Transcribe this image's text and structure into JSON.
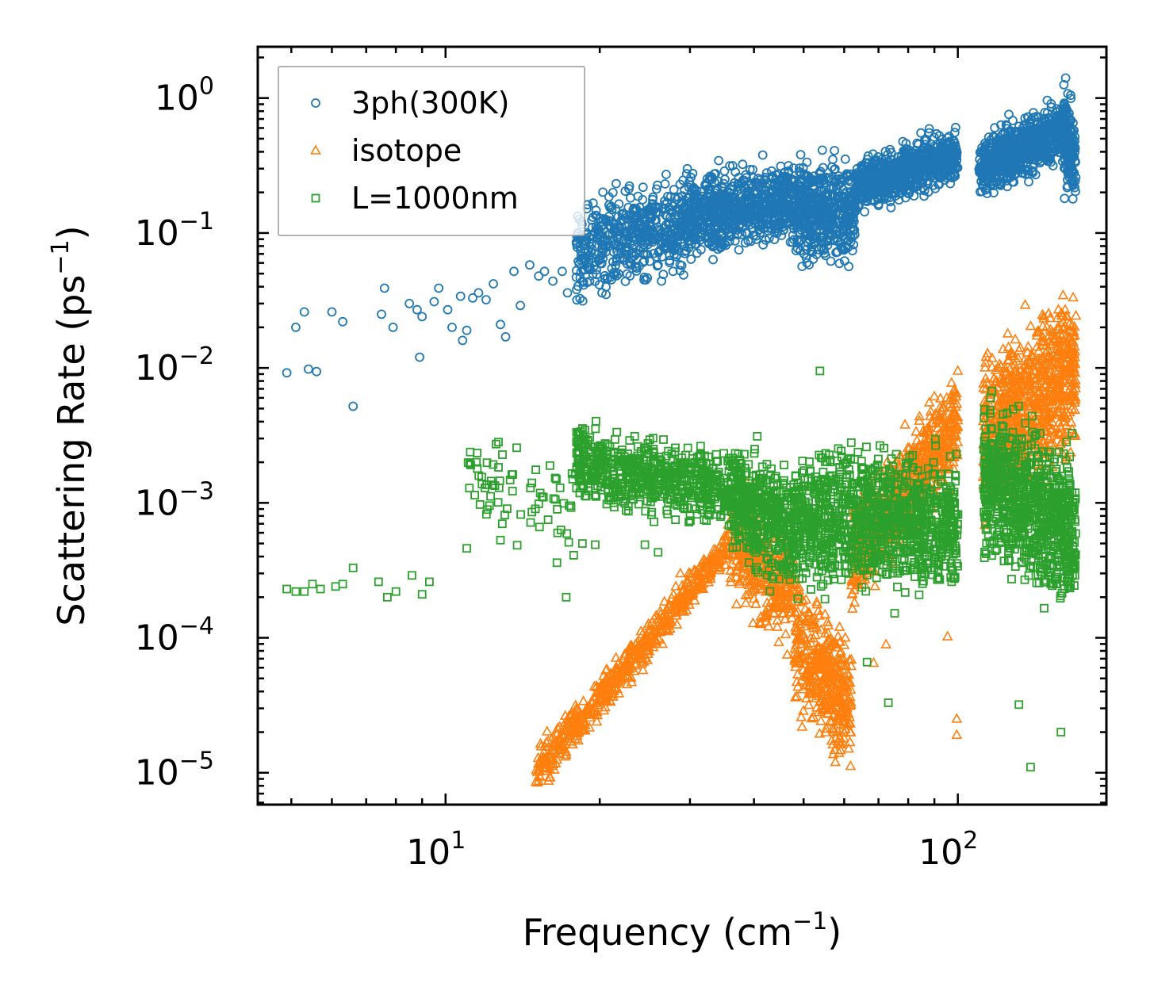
{
  "chart_data": {
    "type": "scatter",
    "xscale": "log",
    "yscale": "log",
    "xlabel": "Frequency (cm",
    "xlabel_sup": "−1",
    "xlabel_close": ")",
    "ylabel": "Scattering Rate (ps",
    "ylabel_sup": "−1",
    "ylabel_close": ")",
    "xlim": [
      4.3,
      195
    ],
    "ylim": [
      5.8e-06,
      2.4
    ],
    "legend_position": "upper-left",
    "x_ticks": [
      {
        "value": 10,
        "base": "10",
        "exp": "1"
      },
      {
        "value": 100,
        "base": "10",
        "exp": "2"
      }
    ],
    "y_ticks": [
      {
        "value": 1,
        "base": "10",
        "exp": "0"
      },
      {
        "value": 0.1,
        "base": "10",
        "exp": "−1"
      },
      {
        "value": 0.01,
        "base": "10",
        "exp": "−2"
      },
      {
        "value": 0.001,
        "base": "10",
        "exp": "−3"
      },
      {
        "value": 0.0001,
        "base": "10",
        "exp": "−4"
      },
      {
        "value": 1e-05,
        "base": "10",
        "exp": "−5"
      }
    ],
    "series": [
      {
        "name": "3ph(300K)",
        "marker": "circle",
        "color": "#1f77b4",
        "points": [
          [
            4.9,
            0.0092
          ],
          [
            5.1,
            0.02
          ],
          [
            5.3,
            0.026
          ],
          [
            5.4,
            0.0098
          ],
          [
            5.6,
            0.0094
          ],
          [
            6.0,
            0.026
          ],
          [
            6.3,
            0.022
          ],
          [
            6.6,
            0.0052
          ],
          [
            7.5,
            0.025
          ],
          [
            7.6,
            0.039
          ],
          [
            7.9,
            0.02
          ],
          [
            8.5,
            0.03
          ],
          [
            8.8,
            0.027
          ],
          [
            8.9,
            0.012
          ],
          [
            9.0,
            0.024
          ],
          [
            9.5,
            0.031
          ],
          [
            9.7,
            0.039
          ],
          [
            10.1,
            0.027
          ],
          [
            10.3,
            0.02
          ],
          [
            10.7,
            0.034
          ],
          [
            10.8,
            0.016
          ],
          [
            11.0,
            0.019
          ],
          [
            11.3,
            0.033
          ],
          [
            11.6,
            0.036
          ],
          [
            12.0,
            0.032
          ],
          [
            12.4,
            0.042
          ],
          [
            12.8,
            0.021
          ],
          [
            13.1,
            0.017
          ],
          [
            13.6,
            0.052
          ],
          [
            14.0,
            0.029
          ],
          [
            14.6,
            0.058
          ],
          [
            15.2,
            0.048
          ],
          [
            15.6,
            0.052
          ],
          [
            16.2,
            0.044
          ],
          [
            16.9,
            0.052
          ],
          [
            17.3,
            0.036
          ],
          [
            18.0,
            0.047
          ],
          [
            18.5,
            0.044
          ],
          [
            19.5,
            0.057
          ],
          [
            20.2,
            0.036
          ],
          [
            21.0,
            0.047
          ],
          [
            21.6,
            0.062
          ],
          [
            23.0,
            0.058
          ],
          [
            24.4,
            0.045
          ],
          [
            26.0,
            0.058
          ],
          [
            27.8,
            0.052
          ],
          [
            29.5,
            0.074
          ]
        ],
        "bands": [
          {
            "x": [
              18,
              30
            ],
            "y_center": [
              0.07,
              0.13
            ],
            "spread": 0.32
          },
          {
            "x": [
              30,
              47
            ],
            "y_center": [
              0.13,
              0.18
            ],
            "spread": 0.26
          },
          {
            "x": [
              47,
              63
            ],
            "y_center": [
              0.15,
              0.14
            ],
            "spread": 0.32
          },
          {
            "x": [
              63,
              100
            ],
            "y_center": [
              0.22,
              0.38
            ],
            "spread": 0.18
          },
          {
            "x": [
              110,
              160
            ],
            "y_center": [
              0.3,
              0.58
            ],
            "spread": 0.2
          },
          {
            "x": [
              160,
              170
            ],
            "y_center": [
              0.6,
              0.35
            ],
            "spread": 0.35
          }
        ],
        "band_counts": [
          520,
          700,
          520,
          750,
          650,
          170
        ]
      },
      {
        "name": "isotope",
        "marker": "triangle",
        "color": "#ff7f0e",
        "points": [
          [
            99.5,
            2.5e-05
          ],
          [
            99.5,
            1.9e-05
          ],
          [
            95.5,
            0.000102
          ],
          [
            68.5,
            6.5e-05
          ],
          [
            72.4,
            8.9e-05
          ]
        ],
        "bands": [
          {
            "x": [
              15,
              36
            ],
            "y_center": [
              1e-05,
              0.0005
            ],
            "spread": 0.14
          },
          {
            "x": [
              36,
              48
            ],
            "y_center": [
              0.0006,
              0.0002
            ],
            "spread": 0.4
          },
          {
            "x": [
              48,
              62
            ],
            "y_center": [
              0.0001,
              3e-05
            ],
            "spread": 0.45
          },
          {
            "x": [
              62,
              100
            ],
            "y_center": [
              0.0004,
              0.004
            ],
            "spread": 0.35
          },
          {
            "x": [
              112,
              170
            ],
            "y_center": [
              0.003,
              0.01
            ],
            "spread": 0.55
          }
        ],
        "band_counts": [
          600,
          350,
          420,
          700,
          900
        ]
      },
      {
        "name": "L=1000nm",
        "marker": "square",
        "color": "#2ca02c",
        "points": [
          [
            4.9,
            0.00023
          ],
          [
            5.1,
            0.00022
          ],
          [
            5.3,
            0.00022
          ],
          [
            5.5,
            0.00025
          ],
          [
            5.7,
            0.00023
          ],
          [
            6.1,
            0.00024
          ],
          [
            6.3,
            0.00025
          ],
          [
            6.6,
            0.00033
          ],
          [
            7.4,
            0.00026
          ],
          [
            7.7,
            0.0002
          ],
          [
            8.0,
            0.00022
          ],
          [
            8.6,
            0.00029
          ],
          [
            9.0,
            0.00021
          ],
          [
            9.3,
            0.00026
          ],
          [
            11.0,
            0.00046
          ],
          [
            12.8,
            0.00053
          ],
          [
            16.5,
            0.00036
          ],
          [
            17.4,
            0.00051
          ],
          [
            18.5,
            0.0005
          ],
          [
            19.6,
            0.00049
          ],
          [
            24.5,
            0.00049
          ],
          [
            26.0,
            0.00043
          ],
          [
            53.8,
            0.0095
          ],
          [
            74.0,
            0.00054
          ],
          [
            100.1,
            0.00082
          ],
          [
            138.7,
            1.1e-05
          ],
          [
            131.6,
            3.2e-05
          ],
          [
            159.0,
            2e-05
          ],
          [
            66.5,
            6.6e-05
          ],
          [
            73.2,
            3.3e-05
          ],
          [
            16.8,
            0.00063
          ],
          [
            17.2,
            0.0002
          ]
        ],
        "bands": [
          {
            "x": [
              11,
              18
            ],
            "y_center": [
              0.0016,
              0.0009
            ],
            "spread": 0.3
          },
          {
            "x": [
              18,
              36
            ],
            "y_center": [
              0.002,
              0.0012
            ],
            "spread": 0.25
          },
          {
            "x": [
              36,
              48
            ],
            "y_center": [
              0.0012,
              0.0006
            ],
            "spread": 0.4
          },
          {
            "x": [
              48,
              100
            ],
            "y_center": [
              0.0008,
              0.0007
            ],
            "spread": 0.45
          },
          {
            "x": [
              112,
              170
            ],
            "y_center": [
              0.0015,
              0.0006
            ],
            "spread": 0.5
          }
        ],
        "band_counts": [
          70,
          650,
          450,
          1100,
          800
        ]
      }
    ]
  }
}
